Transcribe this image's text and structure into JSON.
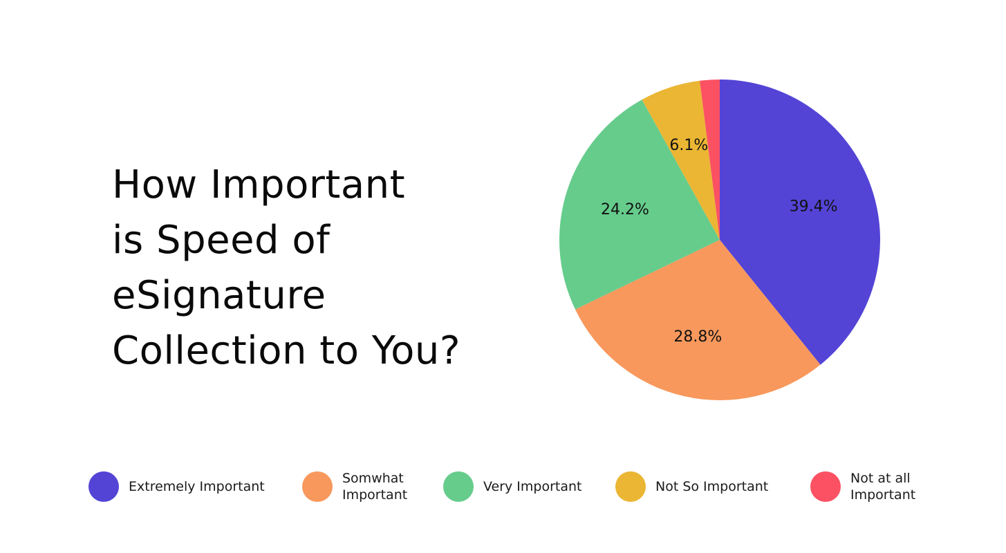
{
  "title": "How Important\nis Speed of\neSignature\nCollection to You?",
  "chart_data": {
    "type": "pie",
    "title": "How Important\nis Speed of\neSignature\nCollection to You?",
    "slices": [
      {
        "label": "Extremely Important",
        "legend": "Extremely Important",
        "value": 39.4,
        "display": "39.4%",
        "color": "#5344D6"
      },
      {
        "label": "Somwhat Important",
        "legend": "Somwhat\nImportant",
        "value": 28.8,
        "display": "28.8%",
        "color": "#F8985C"
      },
      {
        "label": "Very Important",
        "legend": "Very Important",
        "value": 24.2,
        "display": "24.2%",
        "color": "#66CC8C"
      },
      {
        "label": "Not So Important",
        "legend": "Not So Important",
        "value": 6.1,
        "display": "6.1%",
        "color": "#EBB634"
      },
      {
        "label": "Not at all Important",
        "legend": "Not at all\nImportant",
        "value": 2.0,
        "display": "",
        "color": "#FB5163"
      }
    ],
    "legend_position": "bottom"
  }
}
